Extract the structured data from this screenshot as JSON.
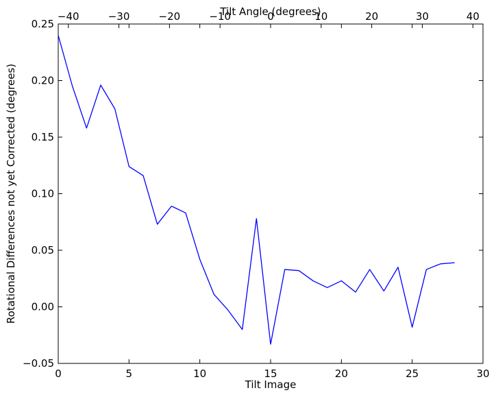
{
  "chart_data": {
    "type": "line",
    "xlabel": "Tilt Image",
    "ylabel": "Rotational Differences not yet Corrected (degrees)",
    "top_xlabel": "Tilt Angle (degrees)",
    "xlim": [
      0,
      30
    ],
    "ylim": [
      -0.05,
      0.25
    ],
    "top_xlim": [
      -42,
      42
    ],
    "xticks": [
      0,
      5,
      10,
      15,
      20,
      25,
      30
    ],
    "xtick_labels": [
      "0",
      "5",
      "10",
      "15",
      "20",
      "25",
      "30"
    ],
    "yticks": [
      -0.05,
      0.0,
      0.05,
      0.1,
      0.15,
      0.2,
      0.25
    ],
    "ytick_labels": [
      "−0.05",
      "0.00",
      "0.05",
      "0.10",
      "0.15",
      "0.20",
      "0.25"
    ],
    "top_xticks": [
      -40,
      -30,
      -20,
      -10,
      0,
      10,
      20,
      30,
      40
    ],
    "top_xtick_labels": [
      "−40",
      "−30",
      "−20",
      "−10",
      "0",
      "10",
      "20",
      "30",
      "40"
    ],
    "grid": false,
    "series": [
      {
        "color": "#0000ff",
        "x": [
          0,
          1,
          2,
          3,
          4,
          5,
          6,
          7,
          8,
          9,
          10,
          11,
          12,
          13,
          14,
          15,
          16,
          17,
          18,
          19,
          20,
          21,
          22,
          23,
          24,
          25,
          26,
          27,
          28
        ],
        "y": [
          0.24,
          0.195,
          0.158,
          0.196,
          0.175,
          0.124,
          0.116,
          0.073,
          0.089,
          0.083,
          0.042,
          0.011,
          -0.003,
          -0.02,
          0.078,
          -0.033,
          0.033,
          0.032,
          0.023,
          0.017,
          0.023,
          0.013,
          0.033,
          0.014,
          0.035,
          -0.018,
          0.033,
          0.038,
          0.039
        ]
      }
    ]
  }
}
